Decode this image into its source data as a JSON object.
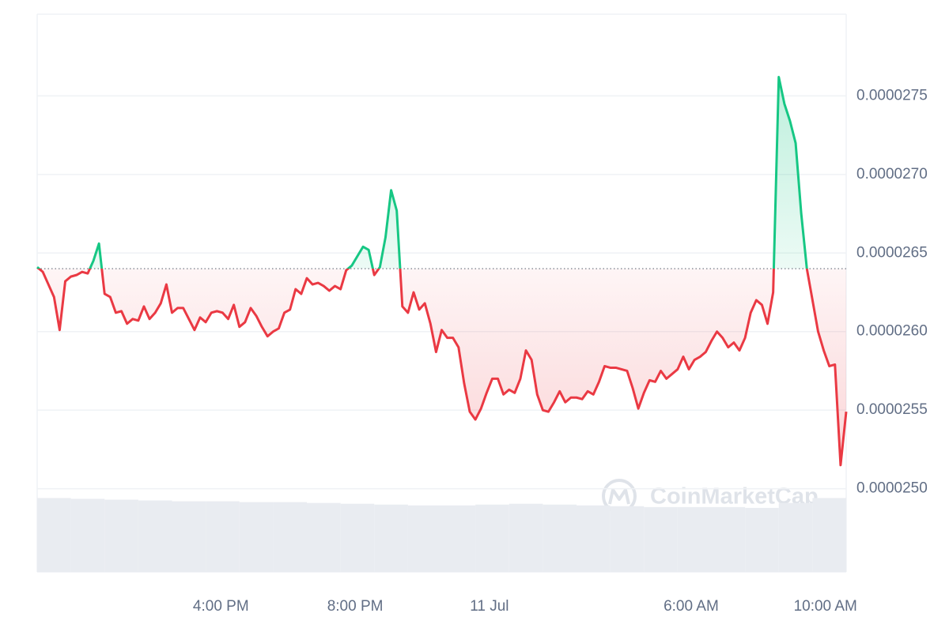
{
  "chart_data": {
    "type": "line",
    "series": [
      {
        "name": "Price",
        "color": "#ea3943",
        "up_color": "#16c784",
        "values": [
          2.641e-05,
          2.638e-05,
          2.63e-05,
          2.622e-05,
          2.601e-05,
          2.632e-05,
          2.635e-05,
          2.636e-05,
          2.638e-05,
          2.637e-05,
          2.645e-05,
          2.656e-05,
          2.624e-05,
          2.622e-05,
          2.612e-05,
          2.613e-05,
          2.605e-05,
          2.608e-05,
          2.607e-05,
          2.616e-05,
          2.608e-05,
          2.612e-05,
          2.618e-05,
          2.63e-05,
          2.612e-05,
          2.615e-05,
          2.615e-05,
          2.608e-05,
          2.601e-05,
          2.609e-05,
          2.606e-05,
          2.612e-05,
          2.613e-05,
          2.612e-05,
          2.608e-05,
          2.617e-05,
          2.603e-05,
          2.606e-05,
          2.615e-05,
          2.61e-05,
          2.603e-05,
          2.597e-05,
          2.6e-05,
          2.602e-05,
          2.612e-05,
          2.614e-05,
          2.627e-05,
          2.624e-05,
          2.634e-05,
          2.63e-05,
          2.631e-05,
          2.629e-05,
          2.626e-05,
          2.629e-05,
          2.627e-05,
          2.639e-05,
          2.642e-05,
          2.648e-05,
          2.654e-05,
          2.652e-05,
          2.636e-05,
          2.641e-05,
          2.66e-05,
          2.69e-05,
          2.677e-05,
          2.616e-05,
          2.612e-05,
          2.625e-05,
          2.614e-05,
          2.618e-05,
          2.605e-05,
          2.587e-05,
          2.601e-05,
          2.596e-05,
          2.596e-05,
          2.59e-05,
          2.567e-05,
          2.549e-05,
          2.544e-05,
          2.551e-05,
          2.561e-05,
          2.57e-05,
          2.57e-05,
          2.56e-05,
          2.563e-05,
          2.561e-05,
          2.57e-05,
          2.588e-05,
          2.582e-05,
          2.56e-05,
          2.55e-05,
          2.549e-05,
          2.555e-05,
          2.562e-05,
          2.555e-05,
          2.558e-05,
          2.558e-05,
          2.557e-05,
          2.562e-05,
          2.56e-05,
          2.568e-05,
          2.578e-05,
          2.577e-05,
          2.577e-05,
          2.576e-05,
          2.575e-05,
          2.564e-05,
          2.551e-05,
          2.561e-05,
          2.569e-05,
          2.568e-05,
          2.575e-05,
          2.57e-05,
          2.573e-05,
          2.576e-05,
          2.584e-05,
          2.576e-05,
          2.582e-05,
          2.584e-05,
          2.587e-05,
          2.594e-05,
          2.6e-05,
          2.596e-05,
          2.59e-05,
          2.593e-05,
          2.588e-05,
          2.596e-05,
          2.612e-05,
          2.62e-05,
          2.617e-05,
          2.605e-05,
          2.625e-05,
          2.762e-05,
          2.745e-05,
          2.734e-05,
          2.72e-05,
          2.675e-05,
          2.64e-05,
          2.62e-05,
          2.6e-05,
          2.588e-05,
          2.578e-05,
          2.579e-05,
          2.515e-05,
          2.549e-05
        ]
      }
    ],
    "baseline": 2.64e-05,
    "xlim": [
      0,
      144
    ],
    "xticks": [
      {
        "value": 32.7,
        "label": "4:00 PM"
      },
      {
        "value": 56.6,
        "label": "8:00 PM"
      },
      {
        "value": 80.5,
        "label": "11 Jul"
      },
      {
        "value": 116.4,
        "label": "6:00 AM"
      },
      {
        "value": 140.3,
        "label": "10:00 AM"
      }
    ],
    "ylim": [
      2.447e-05,
      2.802e-05
    ],
    "yticks": [
      {
        "value": 2.5e-05,
        "label": "0.0000250"
      },
      2.55e-05,
      {
        "value": 2.6e-05,
        "label": "0.0000260"
      },
      2.65e-05,
      {
        "value": 2.7e-05,
        "label": "0.0000270"
      },
      2.75e-05
    ],
    "grid": true,
    "volume": {
      "color": "#e9ecf1",
      "ylim": [
        0,
        100
      ],
      "values": [
        90,
        89,
        88,
        87,
        86,
        86,
        85,
        85,
        84,
        83,
        82,
        81,
        81,
        82,
        83,
        82,
        81,
        80,
        79,
        79,
        79,
        78,
        84,
        90
      ]
    },
    "watermark": "CoinMarketCap"
  }
}
